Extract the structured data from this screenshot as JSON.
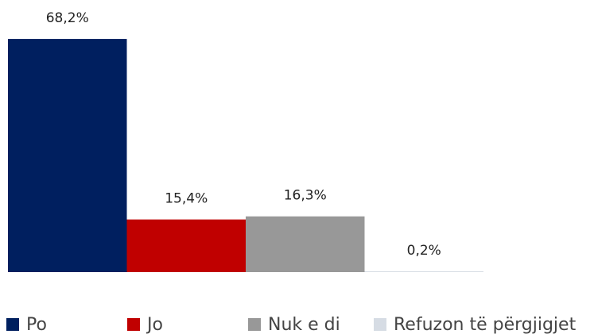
{
  "chart_data": {
    "type": "bar",
    "series": [
      {
        "name": "Po",
        "color": "#001f5f",
        "values": [
          68.2
        ],
        "value_labels": [
          "68,2%"
        ]
      },
      {
        "name": "Jo",
        "color": "#c00000",
        "values": [
          15.4
        ],
        "value_labels": [
          "15,4%"
        ]
      },
      {
        "name": "Nuk e di",
        "color": "#989898",
        "values": [
          16.3
        ],
        "value_labels": [
          "16,3%"
        ]
      },
      {
        "name": "Refuzon të përgjigjet",
        "color": "#d6dce4",
        "values": [
          0.2
        ],
        "value_labels": [
          "0,2%"
        ]
      }
    ],
    "legend": "bottom"
  }
}
